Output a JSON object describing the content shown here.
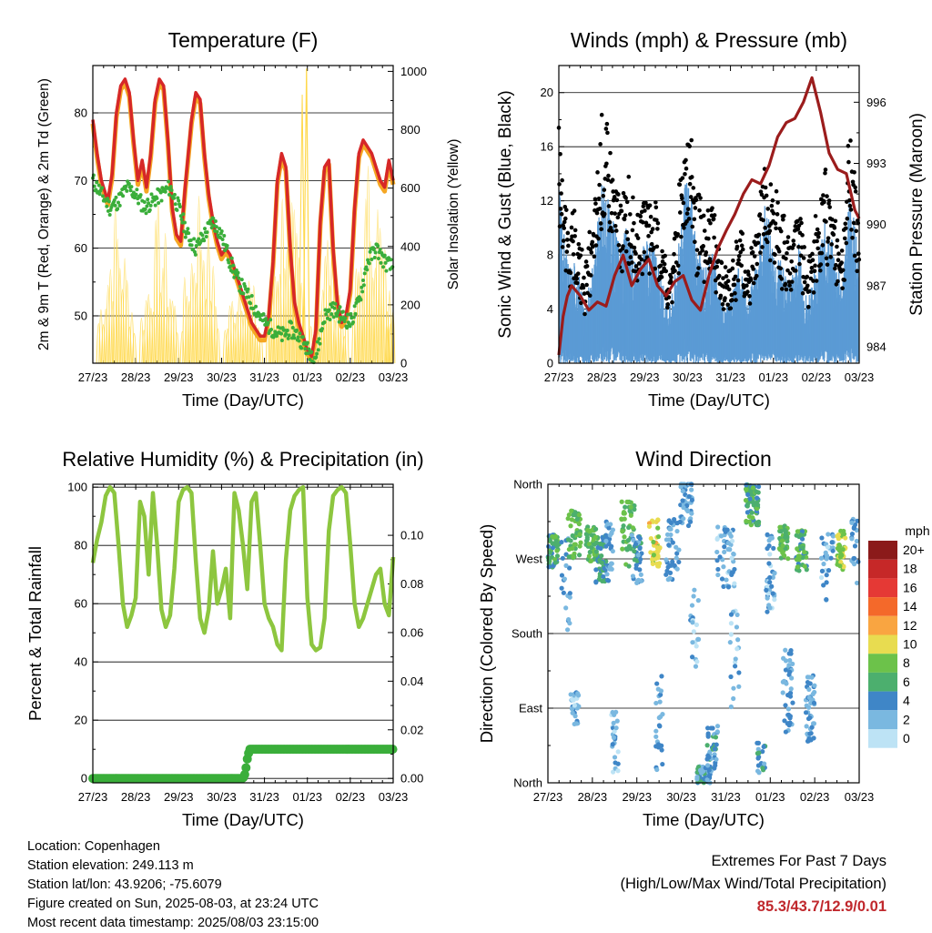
{
  "colors": {
    "temp_red": "#d62728",
    "temp_orange": "#f5a623",
    "dewpoint_green": "#3aae3a",
    "solar_yellow": "#ffd84a",
    "wind_blue": "#5b9bd5",
    "gust_black": "#000000",
    "pressure_maroon": "#9b1c1c",
    "rh_green": "#8dc63f",
    "precip_green": "#3aae3a",
    "extremes_red": "#c0282d"
  },
  "chart_data": [
    {
      "id": "temperature",
      "type": "line",
      "title": "Temperature (F)",
      "xlabel": "Time (Day/UTC)",
      "ylabel": "2m & 9m T (Red, Orange) & 2m Td (Green)",
      "y2label": "Solar Insolation (Yellow)",
      "x_ticks": [
        "27/23",
        "28/23",
        "29/23",
        "30/23",
        "31/23",
        "01/23",
        "02/23",
        "03/23"
      ],
      "xlim": [
        0,
        7
      ],
      "ylim": [
        43,
        87
      ],
      "y_ticks": [
        50,
        60,
        70,
        80
      ],
      "y2lim": [
        0,
        1020
      ],
      "y2_ticks": [
        0,
        200,
        400,
        600,
        800,
        1000
      ],
      "grid": true,
      "series": [
        {
          "name": "2m T",
          "color": "#d62728",
          "x": [
            0,
            0.1,
            0.2,
            0.35,
            0.45,
            0.55,
            0.65,
            0.75,
            0.85,
            0.95,
            1.05,
            1.15,
            1.25,
            1.35,
            1.45,
            1.55,
            1.65,
            1.75,
            1.85,
            1.95,
            2.05,
            2.15,
            2.3,
            2.4,
            2.5,
            2.6,
            2.7,
            2.8,
            2.9,
            3.0,
            3.1,
            3.2,
            3.3,
            3.4,
            3.5,
            3.6,
            3.7,
            3.8,
            3.9,
            4.0,
            4.1,
            4.2,
            4.3,
            4.4,
            4.5,
            4.6,
            4.7,
            4.8,
            4.9,
            5.0,
            5.1,
            5.2,
            5.3,
            5.4,
            5.5,
            5.6,
            5.7,
            5.8,
            5.9,
            6.0,
            6.1,
            6.2,
            6.3,
            6.4,
            6.5,
            6.6,
            6.7,
            6.8,
            6.9,
            7.0
          ],
          "values": [
            79,
            74,
            70,
            67,
            71,
            80,
            84,
            85,
            83,
            76,
            70,
            73,
            69,
            74,
            82,
            85,
            84,
            76,
            66,
            62,
            61,
            69,
            79,
            83,
            82,
            74,
            68,
            64,
            61,
            59,
            60,
            59,
            57,
            55,
            53,
            51,
            49,
            48,
            47,
            47,
            50,
            58,
            70,
            74,
            72,
            60,
            52,
            49,
            47,
            45,
            44,
            48,
            64,
            72,
            73,
            60,
            52,
            49,
            50,
            54,
            66,
            74,
            76,
            75,
            74,
            72,
            70,
            69,
            73,
            70
          ]
        },
        {
          "name": "2m Td",
          "color": "#3aae3a",
          "x": [
            0,
            0.2,
            0.4,
            0.6,
            0.8,
            1.0,
            1.2,
            1.4,
            1.6,
            1.8,
            2.0,
            2.2,
            2.4,
            2.6,
            2.8,
            3.0,
            3.2,
            3.4,
            3.6,
            3.8,
            4.0,
            4.2,
            4.4,
            4.6,
            4.8,
            5.0,
            5.2,
            5.4,
            5.6,
            5.8,
            6.0,
            6.2,
            6.4,
            6.6,
            6.8,
            7.0
          ],
          "values": [
            70,
            68,
            66,
            67,
            69,
            68,
            66,
            67,
            68,
            69,
            66,
            62,
            60,
            62,
            64,
            62,
            58,
            55,
            53,
            51,
            49,
            48,
            47,
            48,
            47,
            45,
            44,
            50,
            51,
            50,
            49,
            52,
            58,
            60,
            58,
            57
          ]
        }
      ]
    },
    {
      "id": "winds",
      "type": "scatter",
      "title": "Winds (mph) & Pressure (mb)",
      "xlabel": "Time (Day/UTC)",
      "ylabel": "Sonic Wind & Gust (Blue, Black)",
      "y2label": "Station Pressure (Maroon)",
      "x_ticks": [
        "27/23",
        "28/23",
        "29/23",
        "30/23",
        "31/23",
        "01/23",
        "02/23",
        "03/23"
      ],
      "xlim": [
        0,
        7
      ],
      "ylim": [
        0,
        22
      ],
      "y_ticks": [
        0,
        4,
        8,
        12,
        16,
        20
      ],
      "y2lim": [
        983.2,
        997.8
      ],
      "y2_ticks": [
        984,
        987,
        990,
        993,
        996
      ],
      "grid": true,
      "series": [
        {
          "name": "Pressure",
          "color": "#9b1c1c",
          "x": [
            0,
            0.1,
            0.2,
            0.3,
            0.5,
            0.7,
            0.9,
            1.1,
            1.3,
            1.5,
            1.7,
            1.9,
            2.1,
            2.3,
            2.5,
            2.7,
            2.9,
            3.1,
            3.3,
            3.5,
            3.7,
            3.9,
            4.1,
            4.3,
            4.5,
            4.7,
            4.9,
            5.1,
            5.3,
            5.5,
            5.7,
            5.9,
            6.1,
            6.3,
            6.5,
            6.7,
            6.9,
            7.0
          ],
          "values": [
            983.6,
            985.5,
            986.5,
            987.0,
            986.5,
            985.8,
            986.2,
            986.0,
            987.5,
            988.5,
            987.0,
            987.8,
            988.3,
            987.0,
            986.5,
            987.2,
            987.5,
            986.3,
            985.8,
            987.5,
            988.8,
            989.7,
            990.5,
            991.5,
            992.2,
            992.0,
            992.9,
            994.3,
            995.0,
            995.2,
            996.0,
            997.2,
            995.5,
            993.5,
            992.7,
            992.5,
            990.7,
            990.3
          ]
        }
      ]
    },
    {
      "id": "humidity",
      "type": "line",
      "title": "Relative Humidity (%) & Precipitation (in)",
      "xlabel": "Time (Day/UTC)",
      "ylabel": "Percent & Total Rainfall",
      "x_ticks": [
        "27/23",
        "28/23",
        "29/23",
        "30/23",
        "31/23",
        "01/23",
        "02/23",
        "03/23"
      ],
      "xlim": [
        0,
        7
      ],
      "ylim": [
        -1.5,
        101
      ],
      "y_ticks": [
        0,
        20,
        40,
        60,
        80,
        100
      ],
      "y2lim": [
        -0.0018,
        0.121
      ],
      "y2_ticks": [
        0.0,
        0.02,
        0.04,
        0.06,
        0.08,
        0.1
      ],
      "y2_tick_labels": [
        "0.00",
        "0.02",
        "0.04",
        "0.06",
        "0.08",
        "0.10"
      ],
      "grid": true,
      "series": [
        {
          "name": "RH",
          "color": "#8dc63f",
          "x": [
            0,
            0.1,
            0.2,
            0.3,
            0.4,
            0.5,
            0.6,
            0.7,
            0.8,
            0.9,
            1.0,
            1.1,
            1.2,
            1.3,
            1.4,
            1.5,
            1.6,
            1.7,
            1.8,
            1.9,
            2.0,
            2.1,
            2.2,
            2.3,
            2.4,
            2.5,
            2.6,
            2.7,
            2.8,
            2.9,
            3.0,
            3.1,
            3.2,
            3.3,
            3.4,
            3.5,
            3.6,
            3.7,
            3.8,
            3.9,
            4.0,
            4.1,
            4.2,
            4.3,
            4.4,
            4.5,
            4.6,
            4.7,
            4.8,
            4.9,
            5.0,
            5.1,
            5.2,
            5.3,
            5.4,
            5.5,
            5.6,
            5.7,
            5.8,
            5.9,
            6.0,
            6.1,
            6.2,
            6.3,
            6.4,
            6.5,
            6.6,
            6.7,
            6.8,
            6.9,
            7.0
          ],
          "values": [
            74,
            82,
            88,
            97,
            100,
            98,
            80,
            60,
            52,
            56,
            62,
            95,
            90,
            70,
            98,
            80,
            58,
            52,
            56,
            72,
            95,
            99,
            100,
            98,
            75,
            55,
            50,
            58,
            78,
            60,
            65,
            72,
            55,
            98,
            92,
            80,
            65,
            95,
            98,
            80,
            60,
            55,
            52,
            46,
            44,
            75,
            92,
            97,
            99,
            100,
            62,
            46,
            44,
            45,
            55,
            85,
            97,
            99,
            100,
            98,
            80,
            60,
            52,
            55,
            60,
            65,
            70,
            72,
            60,
            56,
            76
          ]
        },
        {
          "name": "Precip",
          "color": "#3aae3a",
          "x": [
            0,
            3.5,
            3.55,
            3.6,
            3.65,
            4.0,
            5.0,
            6.0,
            7.0
          ],
          "values": [
            0,
            0,
            0.002,
            0.008,
            0.012,
            0.012,
            0.012,
            0.012,
            0.012
          ]
        }
      ]
    },
    {
      "id": "direction",
      "type": "scatter",
      "title": "Wind Direction",
      "xlabel": "Time (Day/UTC)",
      "ylabel": "Direction (Colored By Speed)",
      "x_ticks": [
        "27/23",
        "28/23",
        "29/23",
        "30/23",
        "31/23",
        "01/23",
        "02/23",
        "03/23"
      ],
      "xlim": [
        0,
        7
      ],
      "ylim": [
        0,
        360
      ],
      "y_ticks": [
        0,
        90,
        180,
        270,
        360
      ],
      "y_tick_labels": [
        "North",
        "East",
        "South",
        "West",
        "North"
      ],
      "grid": true,
      "legend": {
        "title": "mph",
        "labels": [
          "20+",
          "18",
          "16",
          "14",
          "12",
          "10",
          "8",
          "6",
          "4",
          "2",
          "0"
        ],
        "colors": [
          "#8b1a1a",
          "#c62828",
          "#e53935",
          "#f4692a",
          "#f9a541",
          "#e8dc50",
          "#6cc24a",
          "#4caf6e",
          "#3f86c7",
          "#7ab8e0",
          "#bde3f5"
        ],
        "placement": "right"
      }
    }
  ],
  "info": {
    "location": "Location: Copenhagen",
    "elevation": "Station elevation: 249.113 m",
    "latlon": "Station lat/lon: 43.9206; -75.6079",
    "created": "Figure created on Sun, 2025-08-03, at 23:24 UTC",
    "timestamp": "Most recent data timestamp: 2025/08/03 23:15:00"
  },
  "extremes": {
    "title": "Extremes For Past 7 Days",
    "subtitle": "(High/Low/Max Wind/Total Precipitation)",
    "values": "85.3/43.7/12.9/0.01"
  }
}
